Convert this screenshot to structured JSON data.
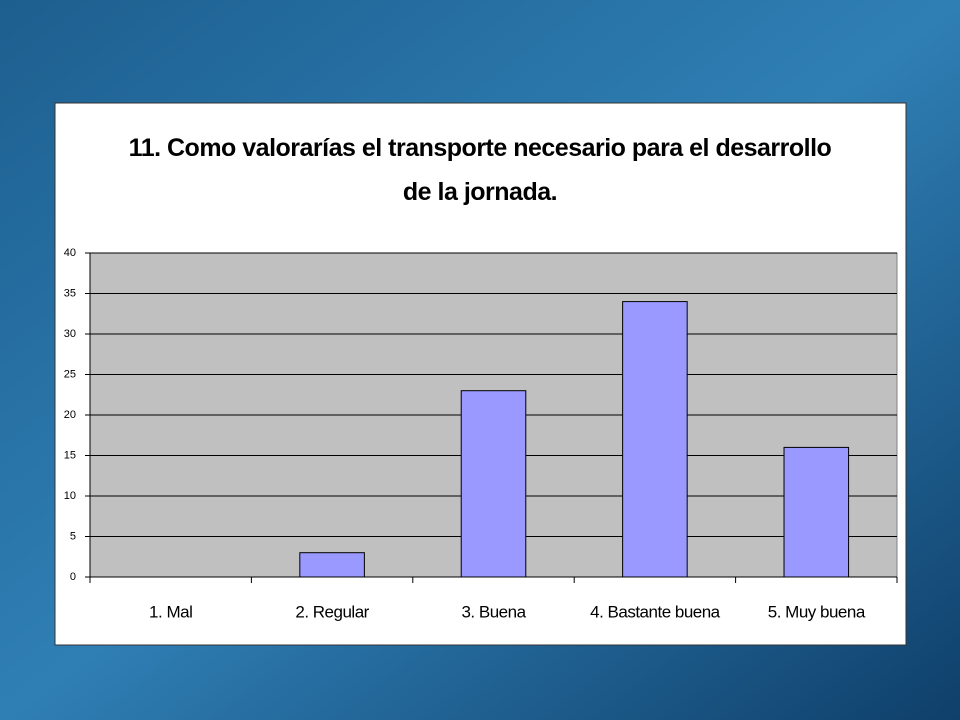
{
  "chart_data": {
    "type": "bar",
    "title": "11. Como valorarías el transporte necesario para el desarrollo de la jornada.",
    "categories": [
      "1. Mal",
      "2. Regular",
      "3. Buena",
      "4. Bastante buena",
      "5. Muy buena"
    ],
    "values": [
      0,
      3,
      23,
      34,
      16
    ],
    "color": "#9999ff",
    "ylim": [
      0,
      40
    ],
    "yticks": [
      0,
      5,
      10,
      15,
      20,
      25,
      30,
      35,
      40
    ],
    "grid": true
  }
}
